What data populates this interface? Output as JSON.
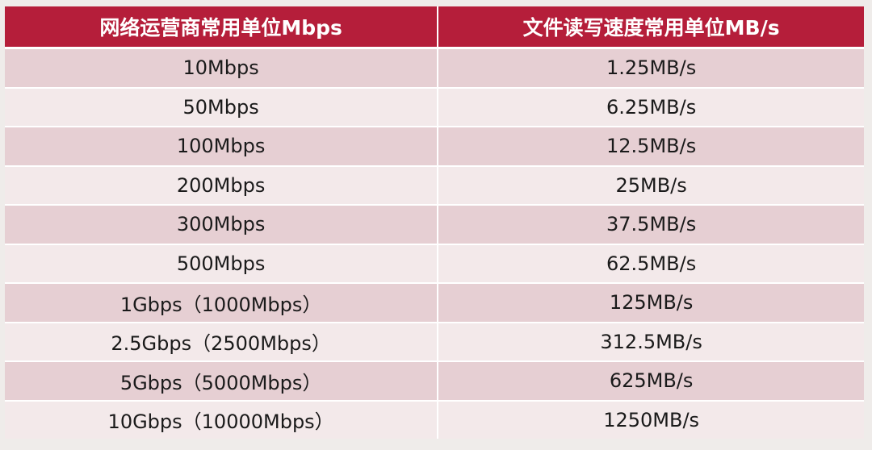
{
  "table": {
    "headers": [
      "网络运营商常用单位Mbps",
      "文件读写速度常用单位MB/s"
    ],
    "rows": [
      [
        "10Mbps",
        "1.25MB/s"
      ],
      [
        "50Mbps",
        "6.25MB/s"
      ],
      [
        "100Mbps",
        "12.5MB/s"
      ],
      [
        "200Mbps",
        "25MB/s"
      ],
      [
        "300Mbps",
        "37.5MB/s"
      ],
      [
        "500Mbps",
        "62.5MB/s"
      ],
      [
        "1Gbps（1000Mbps）",
        "125MB/s"
      ],
      [
        "2.5Gbps（2500Mbps）",
        "312.5MB/s"
      ],
      [
        "5Gbps（5000Mbps）",
        "625MB/s"
      ],
      [
        "10Gbps（10000Mbps）",
        "1250MB/s"
      ]
    ]
  },
  "colors": {
    "header_bg": "#b51e3a",
    "row_odd": "#e6cfd3",
    "row_even": "#f3e9ea",
    "page_bg": "#efecea"
  }
}
